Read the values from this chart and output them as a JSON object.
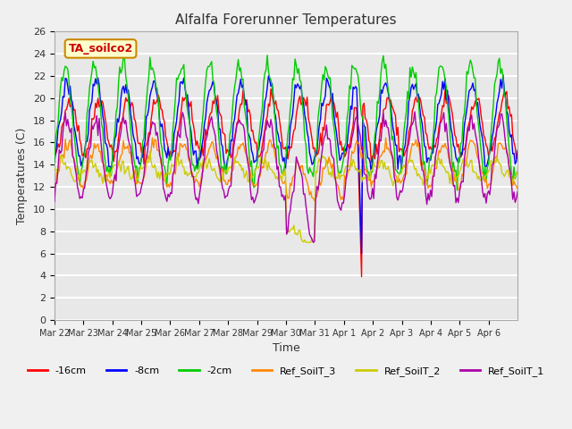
{
  "title": "Alfalfa Forerunner Temperatures",
  "xlabel": "Time",
  "ylabel": "Temperatures (C)",
  "ylim": [
    0,
    26
  ],
  "yticks": [
    0,
    2,
    4,
    6,
    8,
    10,
    12,
    14,
    16,
    18,
    20,
    22,
    24,
    26
  ],
  "annotation_text": "TA_soilco2",
  "annotation_color": "#cc0000",
  "annotation_bg": "#ffffcc",
  "annotation_border": "#cc8800",
  "n_days": 16,
  "xtick_labels": [
    "Mar 22",
    "Mar 23",
    "Mar 24",
    "Mar 25",
    "Mar 26",
    "Mar 27",
    "Mar 28",
    "Mar 29",
    "Mar 30",
    "Mar 31",
    "Apr 1",
    "Apr 2",
    "Apr 3",
    "Apr 4",
    "Apr 5",
    "Apr 6"
  ],
  "colors": {
    "m16cm": "#ff0000",
    "m8cm": "#0000ff",
    "m2cm": "#00cc00",
    "ref3": "#ff8800",
    "ref2": "#cccc00",
    "ref1": "#aa00aa"
  },
  "legend_labels": [
    "-16cm",
    "-8cm",
    "-2cm",
    "Ref_SoilT_3",
    "Ref_SoilT_2",
    "Ref_SoilT_1"
  ],
  "background_color": "#e8e8e8",
  "grid_color": "#ffffff",
  "fig_bg": "#f0f0f0"
}
